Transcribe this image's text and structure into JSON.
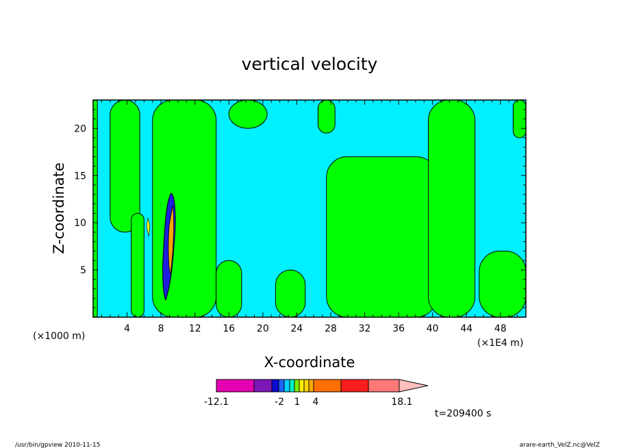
{
  "chart_data": {
    "type": "contour",
    "title": "vertical velocity",
    "xlabel": "X-coordinate",
    "ylabel": "Z-coordinate",
    "x_unit_left": "(×1000 m)",
    "x_unit_right": "(×1E4 m)",
    "xlim": [
      0,
      51
    ],
    "ylim": [
      0,
      23
    ],
    "x_ticks": [
      "4",
      "8",
      "12",
      "16",
      "20",
      "24",
      "28",
      "32",
      "36",
      "40",
      "44",
      "48"
    ],
    "y_ticks": [
      "5",
      "10",
      "15",
      "20"
    ],
    "time_label": "t=209400 s",
    "colorbar": {
      "labels": [
        "-12.1",
        "-2",
        "1",
        "4",
        "18.1"
      ],
      "colors": [
        "#e600b4",
        "#7d18b7",
        "#0a0ad2",
        "#1e64ff",
        "#00d2ff",
        "#00f0c8",
        "#7df000",
        "#fff000",
        "#ffd700",
        "#ffaa00",
        "#ff6e00",
        "#ff1e1e",
        "#ff7878",
        "#ffbebe"
      ]
    },
    "fill_colors": {
      "negative_small": "#00f0ff",
      "positive_small": "#00ff00",
      "strong_negative": "#1e1edc",
      "strong_positive": "#ffa500"
    },
    "regions": [
      {
        "sign": "positive",
        "x": [
          0.0,
          0.5
        ],
        "z": [
          0.0,
          23.0
        ]
      },
      {
        "sign": "positive",
        "x": [
          2.0,
          5.5
        ],
        "z": [
          9.0,
          23.0
        ]
      },
      {
        "sign": "positive",
        "x": [
          4.5,
          6.0
        ],
        "z": [
          0.0,
          11.0
        ]
      },
      {
        "sign": "positive",
        "x": [
          7.0,
          14.5
        ],
        "z": [
          0.0,
          23.0
        ]
      },
      {
        "sign": "positive",
        "x": [
          14.5,
          17.5
        ],
        "z": [
          0.0,
          6.0
        ]
      },
      {
        "sign": "positive",
        "x": [
          16.0,
          20.5
        ],
        "z": [
          20.0,
          23.0
        ]
      },
      {
        "sign": "positive",
        "x": [
          21.5,
          25.0
        ],
        "z": [
          0.0,
          5.0
        ]
      },
      {
        "sign": "positive",
        "x": [
          26.5,
          28.5
        ],
        "z": [
          19.5,
          23.0
        ]
      },
      {
        "sign": "positive",
        "x": [
          27.5,
          40.5
        ],
        "z": [
          0.0,
          17.0
        ]
      },
      {
        "sign": "positive",
        "x": [
          39.5,
          45.0
        ],
        "z": [
          0.0,
          23.0
        ]
      },
      {
        "sign": "positive",
        "x": [
          45.5,
          51.0
        ],
        "z": [
          0.0,
          7.0
        ]
      },
      {
        "sign": "positive",
        "x": [
          49.5,
          51.0
        ],
        "z": [
          19.0,
          23.0
        ]
      }
    ],
    "grid": false
  },
  "footer": {
    "left": "/usr/bin/gpview  2010-11-15",
    "right": "arare-earth_VelZ.nc@VelZ"
  }
}
